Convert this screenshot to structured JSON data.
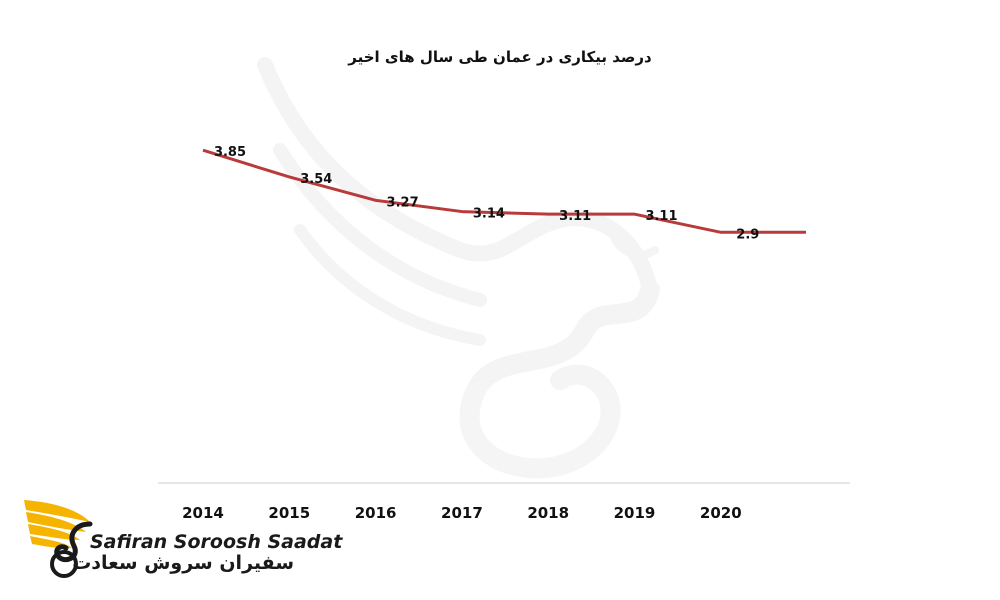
{
  "chart_data": {
    "type": "line",
    "title": "درصد بیکاری در عمان طی سال های اخیر",
    "categories": [
      "2014",
      "2015",
      "2016",
      "2017",
      "2018",
      "2019",
      "2020"
    ],
    "series": [
      {
        "values": [
          3.85,
          3.54,
          3.27,
          3.14,
          3.11,
          3.11,
          2.9
        ]
      }
    ],
    "data_labels": [
      "3.85",
      "3.54",
      "3.27",
      "3.14",
      "3.11",
      "3.11",
      "2.9"
    ],
    "ylim": [
      0,
      4.5
    ],
    "grid": false,
    "legend": "none",
    "colors": {
      "line": "#b83a3a",
      "axis": "#cccccc",
      "text": "#111111"
    }
  },
  "brand": {
    "name_en": "Safiran Soroosh Saadat",
    "name_fa": "سفیران سروش سعادت",
    "colors": {
      "wing": "#f5b400",
      "text": "#1a1a1a"
    }
  }
}
